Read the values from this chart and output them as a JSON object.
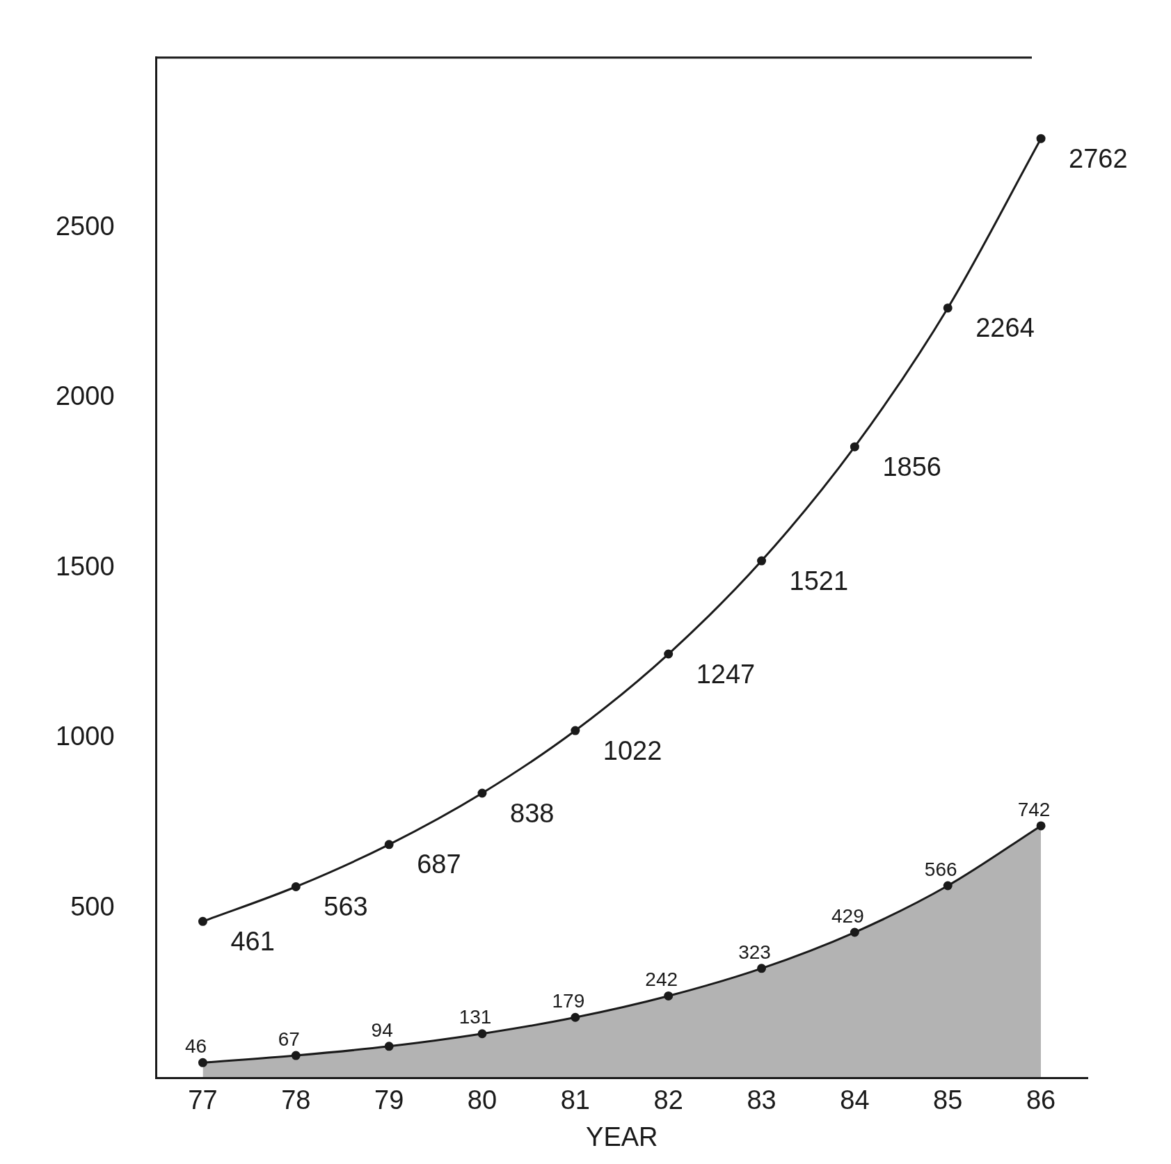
{
  "chart_data": {
    "type": "line",
    "xlabel": "YEAR",
    "categories": [
      "77",
      "78",
      "79",
      "80",
      "81",
      "82",
      "83",
      "84",
      "85",
      "86"
    ],
    "series": [
      {
        "color": "#1a1a1a",
        "values": [
          461,
          563,
          687,
          838,
          1022,
          1247,
          1521,
          1856,
          2264,
          2762
        ]
      },
      {
        "type": "area",
        "color": "#1a1a1a",
        "values": [
          46,
          67,
          94,
          131,
          179,
          242,
          323,
          429,
          566,
          742
        ]
      }
    ],
    "ylim": [
      0,
      3000
    ],
    "yticks": [
      500,
      1000,
      1500,
      2000,
      2500
    ],
    "grid": false,
    "legend": false,
    "marker": "circle",
    "line_style": "solid",
    "data_labels": true
  }
}
